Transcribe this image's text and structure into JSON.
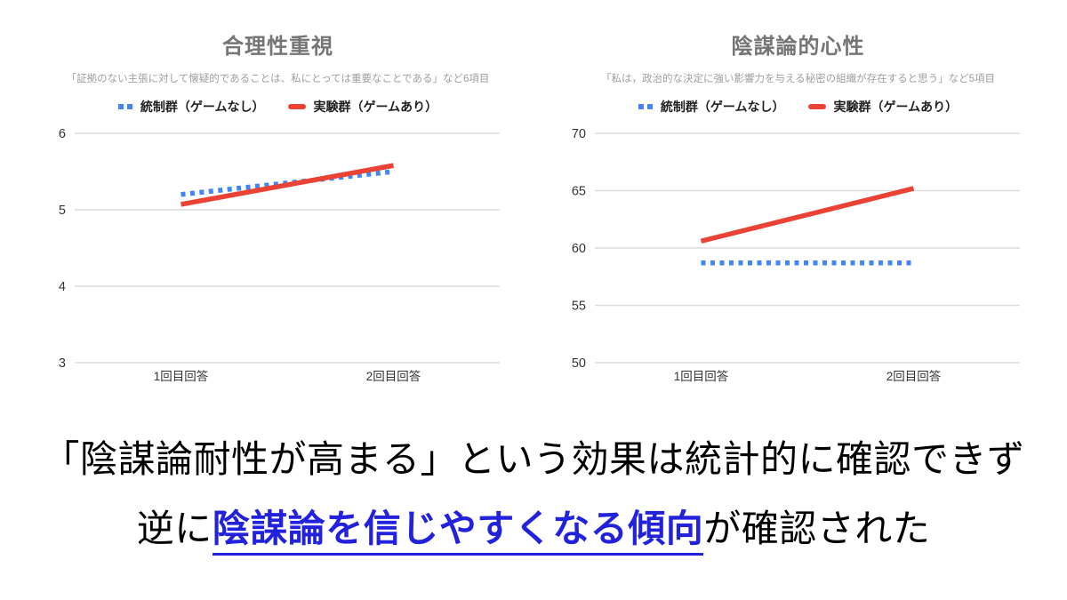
{
  "page": {
    "background": "#ffffff"
  },
  "chart_data": [
    {
      "type": "line",
      "title": "合理性重視",
      "subtitle": "「証拠のない主張に対して懐疑的であることは、私にとっては重要なことである」など6項目",
      "categories": [
        "1回目回答",
        "2回目回答"
      ],
      "series": [
        {
          "name": "統制群（ゲームなし）",
          "values": [
            5.2,
            5.5
          ],
          "color": "#4285F4",
          "dash": "dotted"
        },
        {
          "name": "実験群（ゲームあり）",
          "values": [
            5.07,
            5.58
          ],
          "color": "#EA4335",
          "dash": "solid"
        }
      ],
      "ylim": [
        3,
        6
      ],
      "yticks": [
        6,
        5,
        4,
        3
      ],
      "grid": true,
      "legend_position": "top",
      "gridline_color": "#dcdcdc"
    },
    {
      "type": "line",
      "title": "陰謀論的心性",
      "subtitle": "「私は，政治的な決定に強い影響力を与える秘密の組織が存在すると思う」など5項目",
      "categories": [
        "1回目回答",
        "2回目回答"
      ],
      "series": [
        {
          "name": "統制群（ゲームなし）",
          "values": [
            58.7,
            58.7
          ],
          "color": "#4285F4",
          "dash": "dotted"
        },
        {
          "name": "実験群（ゲームあり）",
          "values": [
            60.6,
            65.2
          ],
          "color": "#EA4335",
          "dash": "solid"
        }
      ],
      "ylim": [
        50,
        70
      ],
      "yticks": [
        70,
        65,
        60,
        55,
        50
      ],
      "grid": true,
      "legend_position": "top",
      "gridline_color": "#dcdcdc"
    }
  ],
  "caption": {
    "line1": "「陰謀論耐性が高まる」という効果は統計的に確認できず",
    "line2_prefix": "逆に",
    "line2_highlight": "陰謀論を信じやすくなる傾向",
    "line2_suffix": "が確認された",
    "highlight_color": "#2222DD"
  }
}
